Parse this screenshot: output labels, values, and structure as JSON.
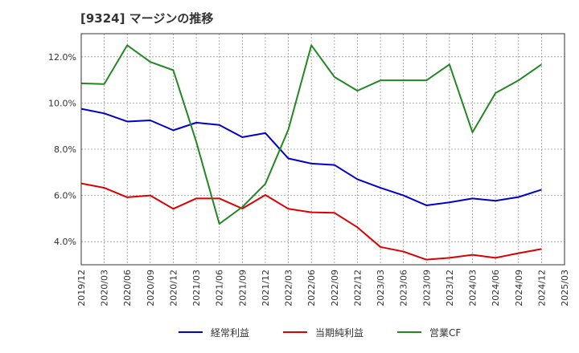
{
  "chart_data": {
    "type": "line",
    "title": "[9324]  マージンの推移",
    "xlabel": "",
    "ylabel": "",
    "x": [
      "2019/12",
      "2020/03",
      "2020/06",
      "2020/09",
      "2020/12",
      "2021/03",
      "2021/06",
      "2021/09",
      "2021/12",
      "2022/03",
      "2022/06",
      "2022/09",
      "2022/12",
      "2023/03",
      "2023/06",
      "2023/09",
      "2023/12",
      "2024/03",
      "2024/06",
      "2024/09",
      "2024/12",
      "2025/03"
    ],
    "ylim": [
      3.0,
      13.0
    ],
    "yticks": [
      4.0,
      6.0,
      8.0,
      10.0,
      12.0
    ],
    "ytick_labels": [
      "4.0%",
      "6.0%",
      "8.0%",
      "10.0%",
      "12.0%"
    ],
    "grid": true,
    "legend_position": "bottom",
    "series": [
      {
        "name": "経常利益",
        "color": "#0000cc",
        "values": [
          9.75,
          9.55,
          9.2,
          9.25,
          8.82,
          9.15,
          9.05,
          8.52,
          8.7,
          7.6,
          7.38,
          7.32,
          6.7,
          6.33,
          6.0,
          5.57,
          5.7,
          5.87,
          5.77,
          5.93,
          6.25,
          null
        ]
      },
      {
        "name": "当期純利益",
        "color": "#dd0000",
        "values": [
          6.52,
          6.33,
          5.92,
          6.0,
          5.42,
          5.87,
          5.87,
          5.43,
          6.02,
          5.42,
          5.27,
          5.25,
          4.62,
          3.77,
          3.57,
          3.22,
          3.3,
          3.43,
          3.3,
          3.5,
          3.68,
          null
        ]
      },
      {
        "name": "営業CF",
        "color": "#228822",
        "values": [
          10.85,
          10.82,
          12.5,
          11.78,
          11.42,
          8.32,
          4.77,
          5.5,
          6.5,
          8.85,
          12.5,
          11.13,
          10.53,
          10.98,
          10.98,
          10.98,
          11.67,
          8.73,
          10.43,
          10.98,
          11.67,
          null
        ]
      }
    ]
  }
}
